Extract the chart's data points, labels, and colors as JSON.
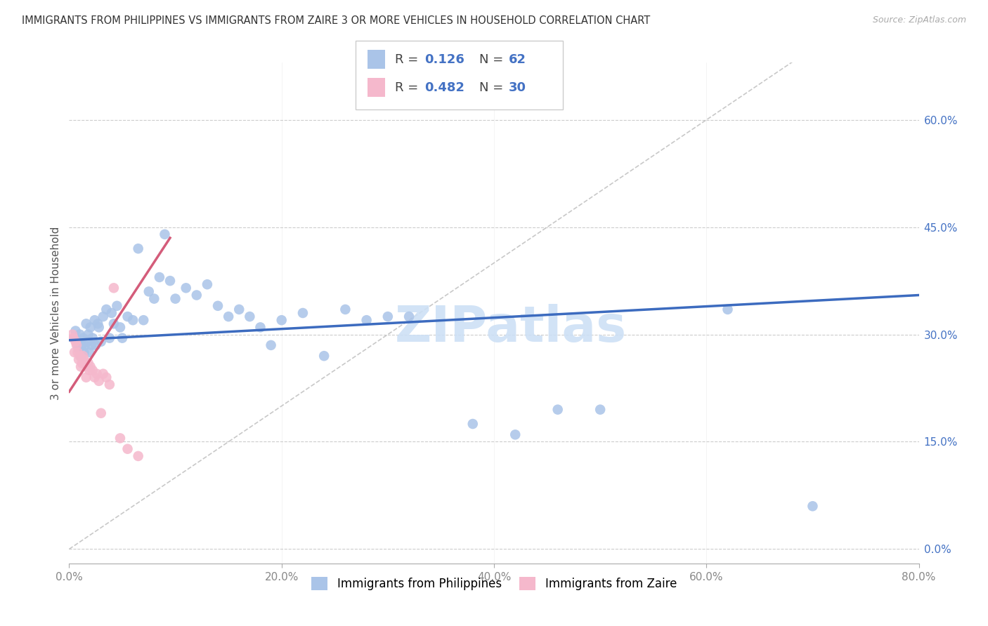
{
  "title": "IMMIGRANTS FROM PHILIPPINES VS IMMIGRANTS FROM ZAIRE 3 OR MORE VEHICLES IN HOUSEHOLD CORRELATION CHART",
  "source": "Source: ZipAtlas.com",
  "ylabel": "3 or more Vehicles in Household",
  "xlim": [
    0.0,
    0.8
  ],
  "ylim": [
    -0.02,
    0.68
  ],
  "xtick_vals": [
    0.0,
    0.2,
    0.4,
    0.6,
    0.8
  ],
  "xticklabels": [
    "0.0%",
    "20.0%",
    "40.0%",
    "60.0%",
    "80.0%"
  ],
  "ytick_vals": [
    0.0,
    0.15,
    0.3,
    0.45,
    0.6
  ],
  "yticklabels": [
    "0.0%",
    "15.0%",
    "30.0%",
    "45.0%",
    "60.0%"
  ],
  "philippines_color": "#aac4e8",
  "zaire_color": "#f5b8cc",
  "philippines_line_color": "#3c6bbf",
  "zaire_line_color": "#d45c7a",
  "diagonal_color": "#bbbbbb",
  "R_philippines": 0.126,
  "N_philippines": 62,
  "R_zaire": 0.482,
  "N_zaire": 30,
  "legend_label_philippines": "Immigrants from Philippines",
  "legend_label_zaire": "Immigrants from Zaire",
  "philippines_x": [
    0.005,
    0.006,
    0.008,
    0.009,
    0.01,
    0.011,
    0.012,
    0.013,
    0.014,
    0.015,
    0.016,
    0.017,
    0.018,
    0.019,
    0.02,
    0.021,
    0.022,
    0.024,
    0.025,
    0.027,
    0.028,
    0.03,
    0.032,
    0.035,
    0.038,
    0.04,
    0.042,
    0.045,
    0.048,
    0.05,
    0.055,
    0.06,
    0.065,
    0.07,
    0.075,
    0.08,
    0.085,
    0.09,
    0.095,
    0.1,
    0.11,
    0.12,
    0.13,
    0.14,
    0.15,
    0.16,
    0.17,
    0.18,
    0.19,
    0.2,
    0.22,
    0.24,
    0.26,
    0.28,
    0.3,
    0.32,
    0.38,
    0.42,
    0.46,
    0.5,
    0.62,
    0.7
  ],
  "philippines_y": [
    0.295,
    0.305,
    0.285,
    0.28,
    0.3,
    0.27,
    0.285,
    0.295,
    0.275,
    0.285,
    0.315,
    0.29,
    0.3,
    0.275,
    0.31,
    0.285,
    0.295,
    0.32,
    0.285,
    0.315,
    0.31,
    0.29,
    0.325,
    0.335,
    0.295,
    0.33,
    0.315,
    0.34,
    0.31,
    0.295,
    0.325,
    0.32,
    0.42,
    0.32,
    0.36,
    0.35,
    0.38,
    0.44,
    0.375,
    0.35,
    0.365,
    0.355,
    0.37,
    0.34,
    0.325,
    0.335,
    0.325,
    0.31,
    0.285,
    0.32,
    0.33,
    0.27,
    0.335,
    0.32,
    0.325,
    0.325,
    0.175,
    0.16,
    0.195,
    0.195,
    0.335,
    0.06
  ],
  "zaire_x": [
    0.003,
    0.004,
    0.005,
    0.006,
    0.007,
    0.008,
    0.009,
    0.01,
    0.011,
    0.012,
    0.013,
    0.014,
    0.015,
    0.016,
    0.017,
    0.018,
    0.019,
    0.02,
    0.022,
    0.024,
    0.026,
    0.028,
    0.03,
    0.032,
    0.035,
    0.038,
    0.042,
    0.048,
    0.055,
    0.065
  ],
  "zaire_y": [
    0.3,
    0.295,
    0.275,
    0.29,
    0.285,
    0.275,
    0.265,
    0.27,
    0.255,
    0.26,
    0.27,
    0.265,
    0.26,
    0.24,
    0.255,
    0.26,
    0.25,
    0.255,
    0.25,
    0.24,
    0.245,
    0.235,
    0.19,
    0.245,
    0.24,
    0.23,
    0.365,
    0.155,
    0.14,
    0.13
  ],
  "watermark_text": "ZIPatlas",
  "watermark_color": "#cde0f5",
  "phil_line_y0": 0.292,
  "phil_line_y1": 0.355,
  "zaire_line_y0": 0.22,
  "zaire_line_y1": 0.435
}
